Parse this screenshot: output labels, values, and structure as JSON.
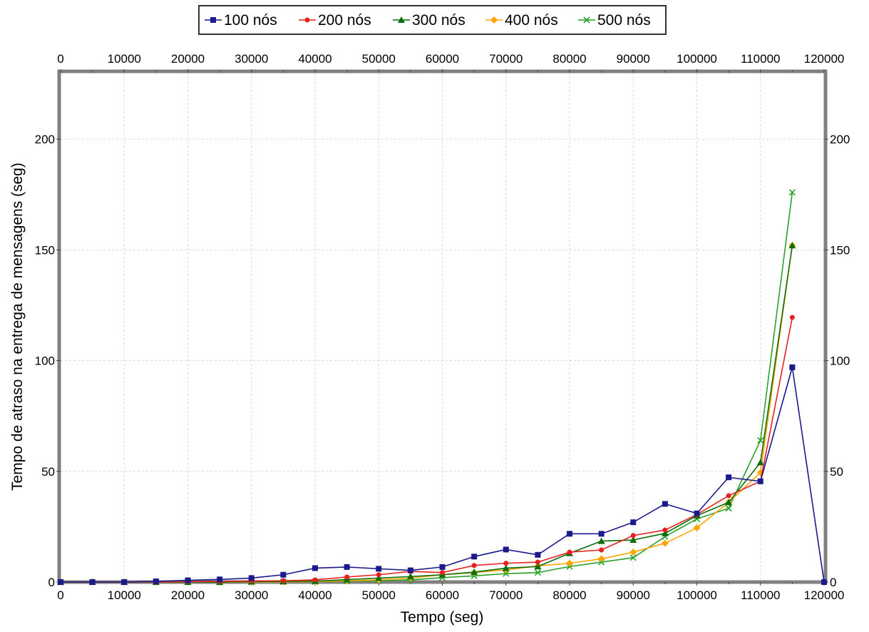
{
  "chart_data": {
    "type": "line",
    "title": "",
    "xlabel": "Tempo (seg)",
    "ylabel": "Tempo de atraso na entrega de mensagens (seg)",
    "xlim": [
      0,
      120000
    ],
    "ylim": [
      0,
      230
    ],
    "xticks": [
      0,
      10000,
      20000,
      30000,
      40000,
      50000,
      60000,
      70000,
      80000,
      90000,
      100000,
      110000,
      120000
    ],
    "yticks": [
      0,
      50,
      100,
      150,
      200
    ],
    "grid": true,
    "legend_position": "top",
    "x": [
      0,
      5000,
      10000,
      15000,
      20000,
      25000,
      30000,
      35000,
      40000,
      45000,
      50000,
      55000,
      60000,
      65000,
      70000,
      75000,
      80000,
      85000,
      90000,
      95000,
      100000,
      105000,
      110000,
      115000,
      120000
    ],
    "series": [
      {
        "name": "100 nós",
        "color": "#1a1a8c",
        "marker": "square",
        "values": [
          0,
          0,
          0,
          0.3,
          0.8,
          1.2,
          1.8,
          3.3,
          6.3,
          6.8,
          6,
          5.3,
          6.8,
          11.5,
          14.7,
          12.3,
          21.8,
          21.8,
          27,
          35.3,
          31,
          47.3,
          45.5,
          97,
          0
        ]
      },
      {
        "name": "200 nós",
        "color": "#e8201e",
        "marker": "circle",
        "values": [
          0,
          0,
          0,
          0,
          0.2,
          0.3,
          0.5,
          0.6,
          1,
          2.3,
          3.3,
          4.8,
          4.3,
          7.5,
          8.5,
          9,
          13.5,
          14.5,
          21,
          23.5,
          30.5,
          39,
          45.5,
          119.5,
          null
        ]
      },
      {
        "name": "300 nós",
        "color": "#0b6d0b",
        "marker": "triangle",
        "values": [
          0,
          0,
          0,
          0,
          0,
          0,
          0.2,
          0.3,
          0.4,
          1.1,
          1.8,
          2.5,
          3.3,
          4.5,
          6.3,
          7,
          13,
          18.5,
          19,
          22,
          30,
          36,
          54,
          152,
          null
        ]
      },
      {
        "name": "400 nós",
        "color": "#ffa500",
        "marker": "diamond",
        "values": [
          0,
          0,
          0,
          0,
          0,
          0,
          0,
          0.1,
          0.2,
          0.6,
          1,
          1.8,
          3.3,
          4.3,
          5.5,
          7.3,
          8.5,
          10.5,
          13.5,
          17.5,
          24.5,
          36,
          49.5,
          152,
          null
        ]
      },
      {
        "name": "500 nós",
        "color": "#2aa12a",
        "marker": "x",
        "values": [
          0,
          0,
          0,
          0,
          0,
          0,
          0,
          0.1,
          0.2,
          0.4,
          0.6,
          1,
          2,
          2.8,
          3.8,
          4.3,
          7,
          9,
          11,
          20.5,
          28.5,
          33.3,
          64,
          176,
          null
        ]
      }
    ]
  }
}
